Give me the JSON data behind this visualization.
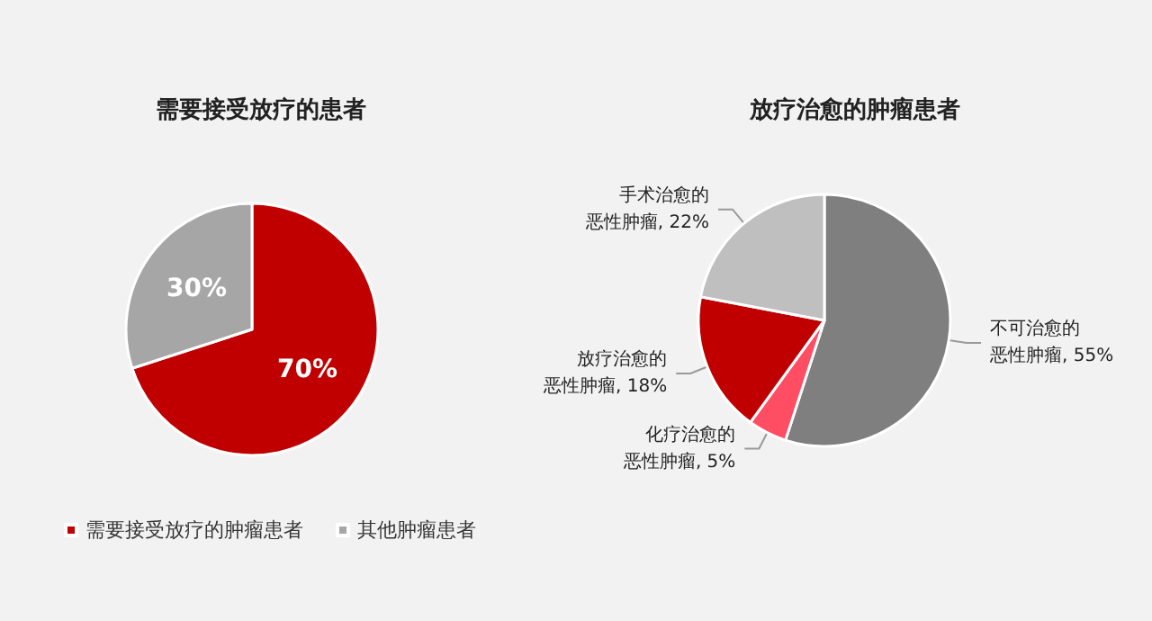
{
  "chart_data": [
    {
      "type": "pie",
      "title": "需要接受放疗的患者",
      "categories": [
        "需要接受放疗的肿瘤患者",
        "其他肿瘤患者"
      ],
      "values": [
        70,
        30
      ],
      "colors": [
        "#c00000",
        "#a6a6a6"
      ],
      "value_labels": [
        "70%",
        "30%"
      ],
      "legend": "bottom"
    },
    {
      "type": "pie",
      "title": "放疗治愈的肿瘤患者",
      "categories": [
        "不可治愈的恶性肿瘤",
        "化疗治愈的恶性肿瘤",
        "放疗治愈的恶性肿瘤",
        "手术治愈的恶性肿瘤"
      ],
      "values": [
        55,
        5,
        18,
        22
      ],
      "colors": [
        "#7f7f7f",
        "#ff4d64",
        "#c00000",
        "#bfbfbf"
      ],
      "value_labels": [
        "55%",
        "5%",
        "18%",
        "22%"
      ],
      "legend": false
    }
  ]
}
